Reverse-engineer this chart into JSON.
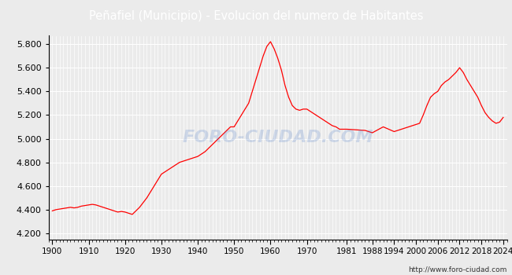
{
  "title": "Peñafiel (Municipio) - Evolucion del numero de Habitantes",
  "title_bg_color": "#4D7CC7",
  "title_text_color": "white",
  "plot_bg_color": "#EBEBEB",
  "fig_bg_color": "#EBEBEB",
  "line_color": "red",
  "ylabel_ticks": [
    4200,
    4400,
    4600,
    4800,
    5000,
    5200,
    5400,
    5600,
    5800
  ],
  "xtick_labels": [
    "1900",
    "1910",
    "1920",
    "1930",
    "1940",
    "1950",
    "1960",
    "1970",
    "1981",
    "1988",
    "1994",
    "2000",
    "2006",
    "2012",
    "2018",
    "2024"
  ],
  "xtick_positions": [
    1900,
    1910,
    1920,
    1930,
    1940,
    1950,
    1960,
    1970,
    1981,
    1988,
    1994,
    2000,
    2006,
    2012,
    2018,
    2024
  ],
  "ylim": [
    4150,
    5870
  ],
  "xlim": [
    1899,
    2025
  ],
  "watermark": "FORO-CIUDAD.COM",
  "url": "http://www.foro-ciudad.com",
  "years": [
    1900,
    1901,
    1902,
    1903,
    1904,
    1905,
    1906,
    1907,
    1908,
    1909,
    1910,
    1911,
    1912,
    1913,
    1914,
    1915,
    1916,
    1917,
    1918,
    1919,
    1920,
    1921,
    1922,
    1923,
    1924,
    1925,
    1926,
    1927,
    1928,
    1929,
    1930,
    1931,
    1932,
    1933,
    1934,
    1935,
    1936,
    1937,
    1938,
    1939,
    1940,
    1941,
    1942,
    1943,
    1944,
    1945,
    1946,
    1947,
    1948,
    1949,
    1950,
    1951,
    1952,
    1953,
    1954,
    1955,
    1956,
    1957,
    1958,
    1959,
    1960,
    1961,
    1962,
    1963,
    1964,
    1965,
    1966,
    1967,
    1968,
    1969,
    1970,
    1971,
    1972,
    1973,
    1974,
    1975,
    1976,
    1977,
    1978,
    1979,
    1981,
    1986,
    1988,
    1991,
    1994,
    1995,
    1996,
    1997,
    1998,
    1999,
    2000,
    2001,
    2002,
    2003,
    2004,
    2005,
    2006,
    2007,
    2008,
    2009,
    2010,
    2011,
    2012,
    2013,
    2014,
    2015,
    2016,
    2017,
    2018,
    2019,
    2020,
    2021,
    2022,
    2023,
    2024
  ],
  "population": [
    4390,
    4400,
    4405,
    4410,
    4415,
    4420,
    4415,
    4420,
    4430,
    4435,
    4440,
    4445,
    4440,
    4430,
    4420,
    4410,
    4400,
    4390,
    4380,
    4385,
    4380,
    4370,
    4360,
    4390,
    4420,
    4460,
    4500,
    4550,
    4600,
    4650,
    4700,
    4720,
    4740,
    4760,
    4780,
    4800,
    4810,
    4820,
    4830,
    4840,
    4850,
    4870,
    4890,
    4920,
    4950,
    4980,
    5010,
    5040,
    5070,
    5100,
    5100,
    5150,
    5200,
    5250,
    5300,
    5400,
    5500,
    5600,
    5700,
    5780,
    5820,
    5760,
    5680,
    5580,
    5450,
    5350,
    5280,
    5250,
    5240,
    5250,
    5250,
    5230,
    5210,
    5190,
    5170,
    5150,
    5130,
    5110,
    5100,
    5080,
    5080,
    5070,
    5050,
    5100,
    5060,
    5070,
    5080,
    5090,
    5100,
    5110,
    5120,
    5130,
    5200,
    5280,
    5350,
    5380,
    5400,
    5450,
    5480,
    5500,
    5530,
    5560,
    5600,
    5560,
    5500,
    5450,
    5400,
    5350,
    5280,
    5220,
    5180,
    5150,
    5130,
    5140,
    5180
  ]
}
